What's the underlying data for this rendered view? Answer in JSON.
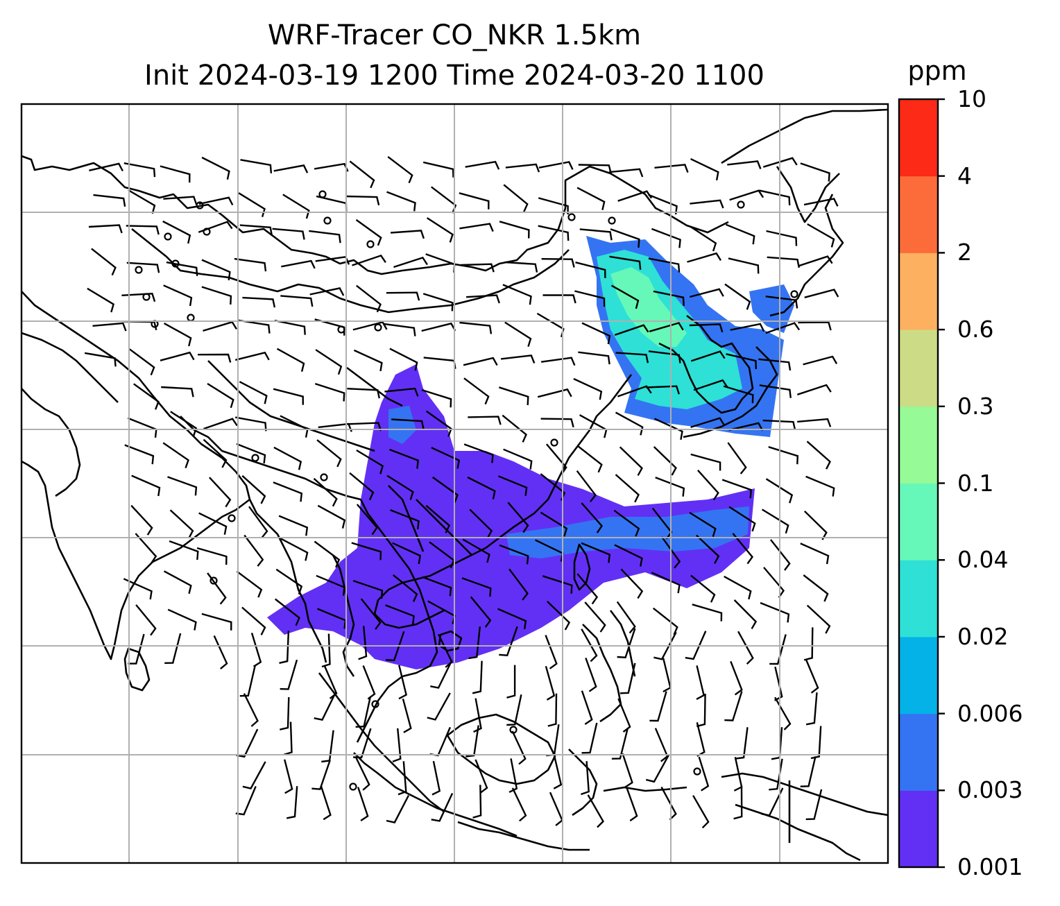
{
  "title": {
    "line1": "WRF-Tracer CO_NKR 1.5km",
    "line2": "Init 2024-03-19 1200 Time 2024-03-20 1100"
  },
  "colorbar": {
    "unit": "ppm",
    "levels": [
      "0.001",
      "0.003",
      "0.006",
      "0.02",
      "0.04",
      "0.1",
      "0.3",
      "0.6",
      "2",
      "4",
      "10"
    ],
    "colors": [
      "#6230f4",
      "#3474f2",
      "#04b2e8",
      "#2ee0d6",
      "#66f8b8",
      "#96fa96",
      "#ccdc86",
      "#fcb060",
      "#fc6c3a",
      "#fc2a16"
    ]
  },
  "map": {
    "gridlines": true,
    "plume_colors": {
      "low": "#6230f4",
      "mid": "#3474f2",
      "high1": "#2ee0d6",
      "high2": "#66f8b8"
    }
  }
}
